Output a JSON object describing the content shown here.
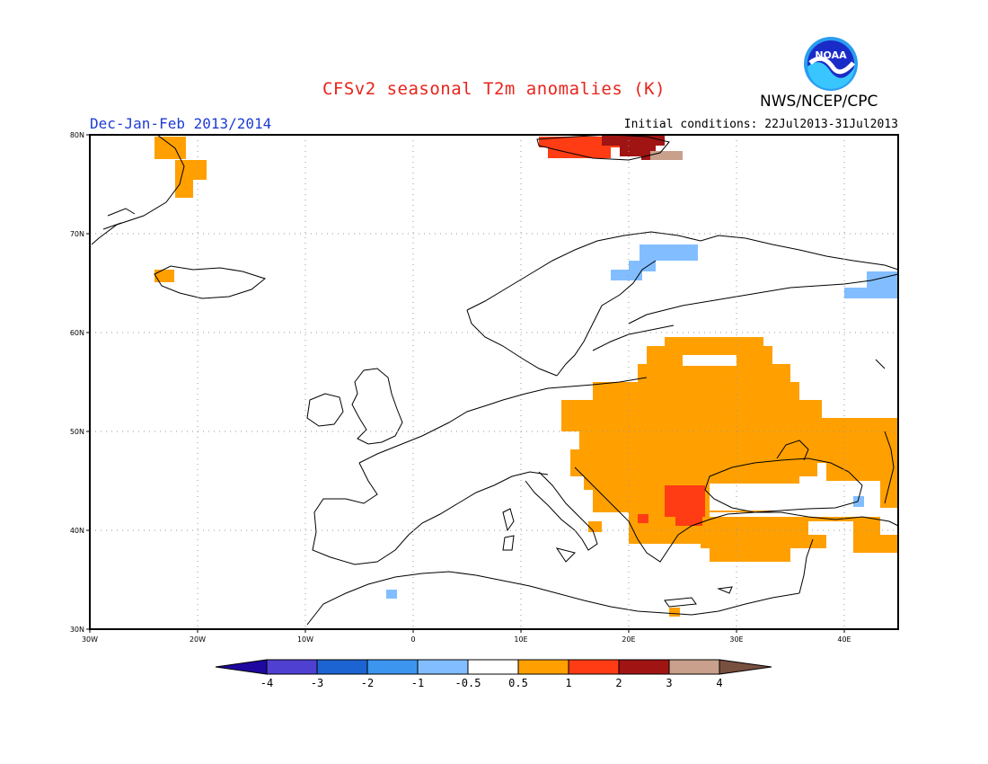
{
  "header": {
    "title": "CFSv2 seasonal T2m anomalies (K)",
    "credit": "NWS/NCEP/CPC",
    "logo_text": "NOAA",
    "season": "Dec-Jan-Feb 2013/2014",
    "initial_conditions": "Initial conditions: 22Jul2013-31Jul2013"
  },
  "map": {
    "lon_range": [
      -30,
      45
    ],
    "lat_range": [
      30,
      80
    ],
    "lon_ticks": [
      "30W",
      "20W",
      "10W",
      "0",
      "10E",
      "20E",
      "30E",
      "40E"
    ],
    "lat_ticks": [
      "80N",
      "70N",
      "60N",
      "50N",
      "40N",
      "30N"
    ],
    "grid": "dotted"
  },
  "colorbar": {
    "labels": [
      "-4",
      "-3",
      "-2",
      "-1",
      "-0.5",
      "0.5",
      "1",
      "2",
      "3",
      "4"
    ],
    "colors": [
      "#1e08a0",
      "#5040d2",
      "#1c64d2",
      "#3c96f0",
      "#82beff",
      "#ffffff",
      "#ffa000",
      "#ff3c14",
      "#a01414",
      "#c8a08c",
      "#785040"
    ]
  },
  "chart_data": {
    "type": "heatmap",
    "title": "CFSv2 seasonal T2m anomalies (K)",
    "subtitle": "Dec-Jan-Feb 2013/2014",
    "units": "K",
    "anomaly_regions": [
      {
        "region": "Eastern Europe / Ukraine / Belarus",
        "range_K": "0.5 to 1"
      },
      {
        "region": "Balkans / Romania / Bulgaria",
        "range_K": "0.5 to 1"
      },
      {
        "region": "Eastern Bulgaria / Black Sea coast",
        "range_K": "1 to 2"
      },
      {
        "region": "Turkey / Anatolia",
        "range_K": "0.5 to 1"
      },
      {
        "region": "Caucasus / southern Russia",
        "range_K": "0.5 to 1"
      },
      {
        "region": "Svalbard",
        "range_K": "1 to 4"
      },
      {
        "region": "East Greenland coast",
        "range_K": "0.5 to 1"
      },
      {
        "region": "Northern Scandinavia",
        "range_K": "-1 to -0.5"
      },
      {
        "region": "Northwest Russia",
        "range_K": "-1 to -0.5"
      }
    ]
  }
}
